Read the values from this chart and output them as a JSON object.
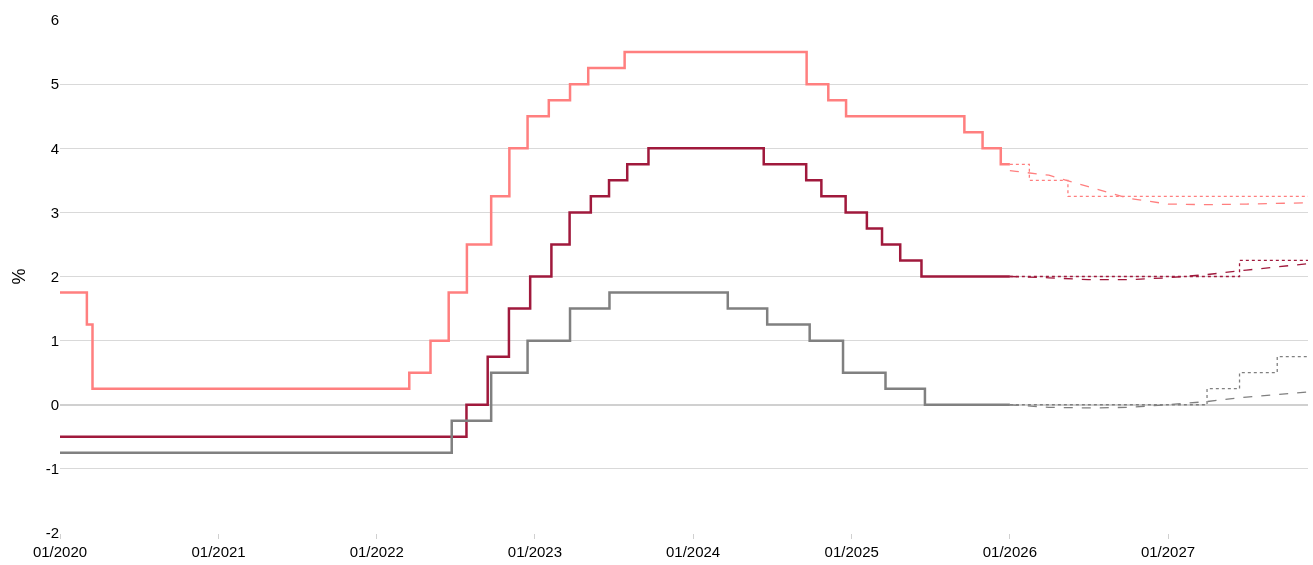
{
  "chart_data": {
    "type": "step",
    "ylabel": "%",
    "xlim": [
      "2020-01-01",
      "2027-11-20"
    ],
    "ylim": [
      -2,
      6
    ],
    "yticks": [
      -2,
      -1,
      0,
      1,
      2,
      3,
      4,
      5,
      6
    ],
    "xticks": [
      {
        "value": "2020-01-01",
        "label": "01/2020"
      },
      {
        "value": "2021-01-01",
        "label": "01/2021"
      },
      {
        "value": "2022-01-01",
        "label": "01/2022"
      },
      {
        "value": "2023-01-01",
        "label": "01/2023"
      },
      {
        "value": "2024-01-01",
        "label": "01/2024"
      },
      {
        "value": "2025-01-01",
        "label": "01/2025"
      },
      {
        "value": "2026-01-01",
        "label": "01/2026"
      },
      {
        "value": "2027-01-01",
        "label": "01/2027"
      }
    ],
    "grid": "y",
    "marker": "none",
    "series": [
      {
        "color": "#ff7f7f",
        "line_style": "solid",
        "x": [
          "2020-01-01",
          "2020-03-03",
          "2020-03-16",
          "2022-03-17",
          "2022-05-05",
          "2022-06-16",
          "2022-07-28",
          "2022-09-22",
          "2022-11-03",
          "2022-12-15",
          "2023-02-02",
          "2023-03-23",
          "2023-05-04",
          "2023-07-27",
          "2024-09-19",
          "2024-11-08",
          "2024-12-19",
          "2025-09-18",
          "2025-10-30",
          "2025-12-11",
          "2026-01-01"
        ],
        "values": [
          1.75,
          1.25,
          0.25,
          0.5,
          1.0,
          1.75,
          2.5,
          3.25,
          4.0,
          4.5,
          4.75,
          5.0,
          5.25,
          5.5,
          5.0,
          4.75,
          4.5,
          4.25,
          4.0,
          3.75,
          3.75
        ]
      },
      {
        "color": "#a0193c",
        "line_style": "solid",
        "x": [
          "2020-01-01",
          "2022-07-27",
          "2022-09-14",
          "2022-11-02",
          "2022-12-21",
          "2023-02-08",
          "2023-03-22",
          "2023-05-10",
          "2023-06-21",
          "2023-08-02",
          "2023-09-20",
          "2024-06-12",
          "2024-09-18",
          "2024-10-23",
          "2024-12-18",
          "2025-02-05",
          "2025-03-12",
          "2025-04-23",
          "2025-06-11",
          "2026-01-01"
        ],
        "values": [
          -0.5,
          0.0,
          0.75,
          1.5,
          2.0,
          2.5,
          3.0,
          3.25,
          3.5,
          3.75,
          4.0,
          3.75,
          3.5,
          3.25,
          3.0,
          2.75,
          2.5,
          2.25,
          2.0,
          2.0
        ]
      },
      {
        "color": "#808080",
        "line_style": "solid",
        "x": [
          "2020-01-01",
          "2022-06-23",
          "2022-09-22",
          "2022-12-15",
          "2023-03-23",
          "2023-06-22",
          "2024-03-21",
          "2024-06-20",
          "2024-09-26",
          "2024-12-12",
          "2025-03-20",
          "2025-06-19",
          "2026-01-01"
        ],
        "values": [
          -0.75,
          -0.25,
          0.5,
          1.0,
          1.5,
          1.75,
          1.5,
          1.25,
          1.0,
          0.5,
          0.25,
          0.0,
          0.0
        ]
      },
      {
        "color": "#ff7f7f",
        "line_style": "dotted",
        "x": [
          "2026-01-01",
          "2026-02-15",
          "2026-05-15",
          "2027-11-20"
        ],
        "values": [
          3.75,
          3.5,
          3.25,
          3.25
        ]
      },
      {
        "color": "#a0193c",
        "line_style": "dotted",
        "x": [
          "2026-01-01",
          "2027-06-15",
          "2027-11-20"
        ],
        "values": [
          2.0,
          2.25,
          2.25
        ]
      },
      {
        "color": "#808080",
        "line_style": "dotted",
        "x": [
          "2026-01-01",
          "2027-04-01",
          "2027-06-15",
          "2027-09-10",
          "2027-11-20"
        ],
        "values": [
          0.0,
          0.25,
          0.5,
          0.75,
          0.75
        ]
      },
      {
        "type": "line",
        "color": "#ff7f7f",
        "line_style": "dashed",
        "x": [
          "2026-01-01",
          "2026-04-01",
          "2026-07-01",
          "2026-10-01",
          "2027-01-01",
          "2027-04-01",
          "2027-07-01",
          "2027-11-20"
        ],
        "values": [
          3.65,
          3.58,
          3.4,
          3.22,
          3.13,
          3.12,
          3.13,
          3.15
        ]
      },
      {
        "type": "line",
        "color": "#a0193c",
        "line_style": "dashed",
        "x": [
          "2026-01-01",
          "2026-04-01",
          "2026-07-01",
          "2026-10-01",
          "2027-01-01",
          "2027-04-01",
          "2027-07-01",
          "2027-11-20"
        ],
        "values": [
          2.0,
          1.98,
          1.95,
          1.95,
          1.98,
          2.03,
          2.1,
          2.2
        ]
      },
      {
        "type": "line",
        "color": "#808080",
        "line_style": "dashed",
        "x": [
          "2026-01-01",
          "2026-04-01",
          "2026-07-01",
          "2026-10-01",
          "2027-01-01",
          "2027-04-01",
          "2027-07-01",
          "2027-11-20"
        ],
        "values": [
          0.0,
          -0.04,
          -0.05,
          -0.04,
          0.0,
          0.05,
          0.12,
          0.2
        ]
      }
    ]
  }
}
